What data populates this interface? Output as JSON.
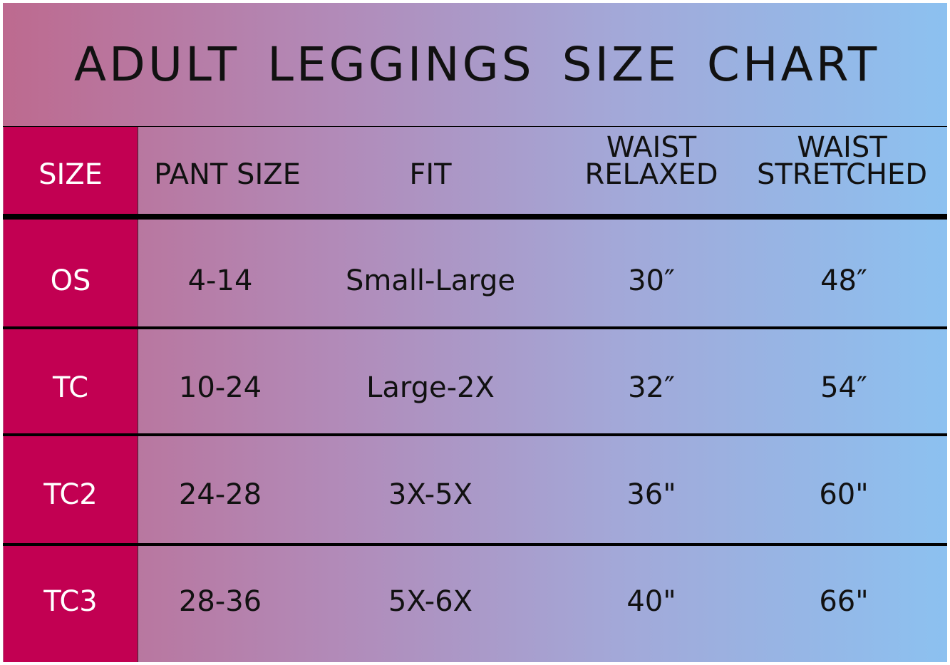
{
  "title": "ADULT LEGGINGS SIZE CHART",
  "colors": {
    "size_column": "#c20052",
    "gradient_left": "#bd6a8f",
    "gradient_right": "#8cc1f0"
  },
  "headers": [
    "SIZE",
    "PANT SIZE",
    "FIT",
    "WAIST RELAXED",
    "WAIST STRETCHED"
  ],
  "rows": [
    [
      "OS",
      "4-14",
      "Small-Large",
      "30″",
      "48″"
    ],
    [
      "TC",
      "10-24",
      "Large-2X",
      "32″",
      "54″"
    ],
    [
      "TC2",
      "24-28",
      "3X-5X",
      "36\"",
      "60\""
    ],
    [
      "TC3",
      "28-36",
      "5X-6X",
      "40\"",
      "66\""
    ]
  ]
}
